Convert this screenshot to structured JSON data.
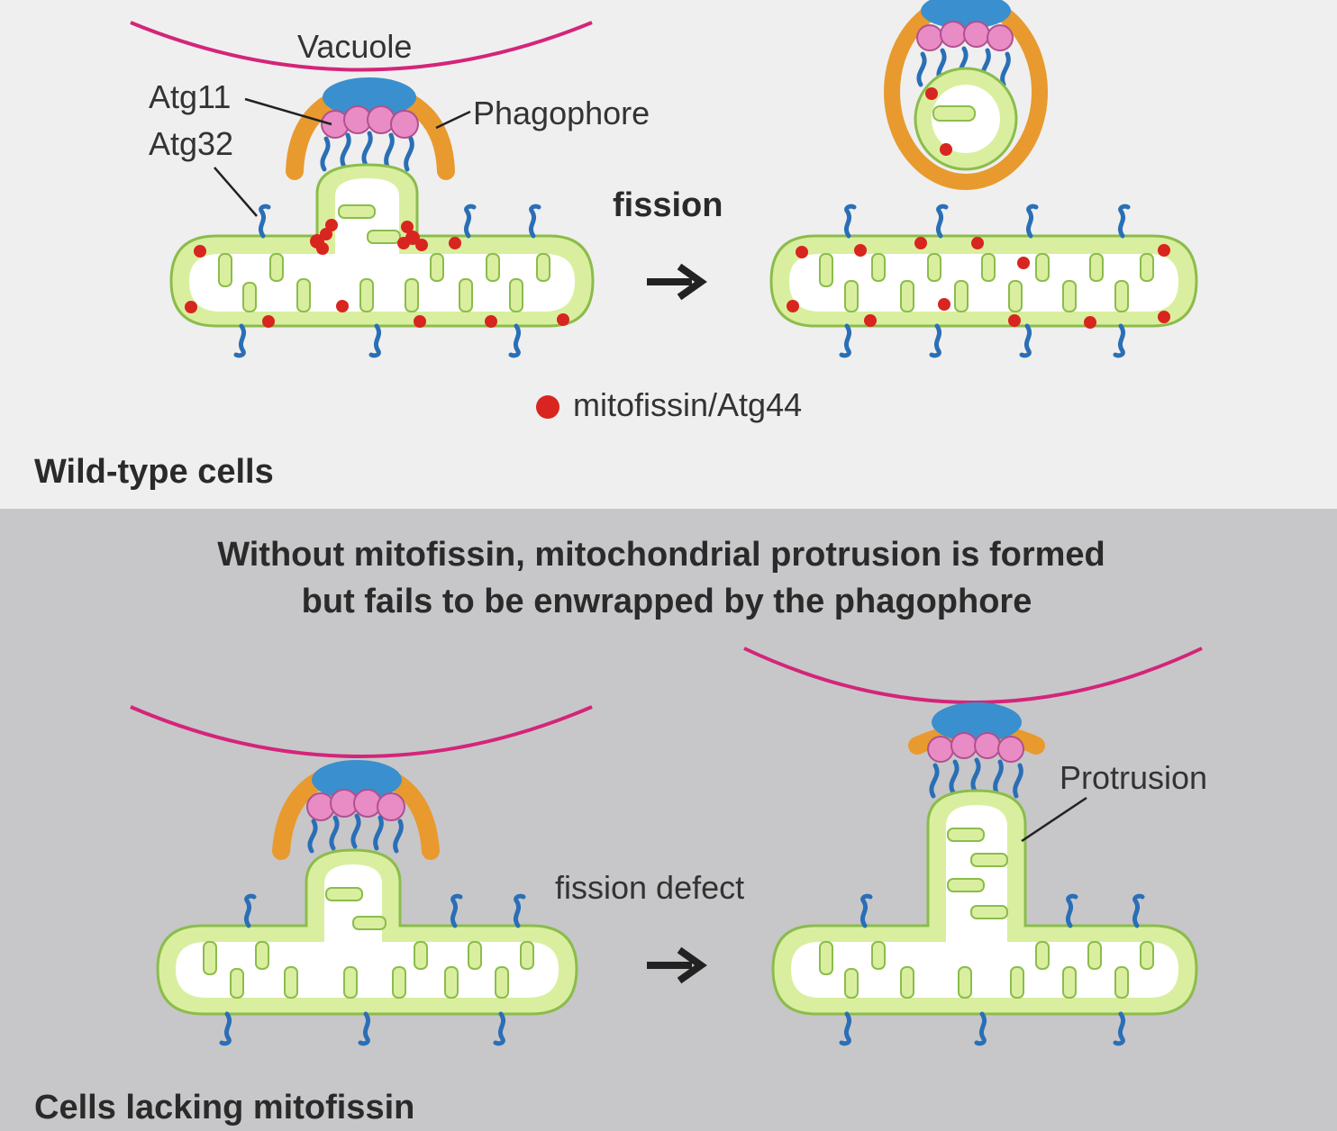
{
  "top_panel": {
    "labels": {
      "vacuole": "Vacuole",
      "atg11": "Atg11",
      "atg32": "Atg32",
      "phagophore": "Phagophore",
      "fission": "fission",
      "legend": "mitofissin/Atg44"
    },
    "caption": "Wild-type cells"
  },
  "bottom_panel": {
    "heading_line1": "Without mitofissin, mitochondrial protrusion is formed",
    "heading_line2": "but fails to be enwrapped by the phagophore",
    "labels": {
      "fission_defect": "fission defect",
      "protrusion": "Protrusion"
    },
    "caption": "Cells lacking mitofissin"
  },
  "colors": {
    "top_background": "#efefef",
    "bottom_background": "#c7c7c9",
    "vacuole_membrane": "#d4257a",
    "mitochondria_fill": "#d9ef9f",
    "mitochondria_outline": "#8cbc4c",
    "phagophore": "#e89a2f",
    "atg11": "#3a8fce",
    "atg32_beads": "#e98bc4",
    "atg32_tails": "#2a6fb6",
    "mitofissin": "#d8251f",
    "arrow": "#222222"
  }
}
